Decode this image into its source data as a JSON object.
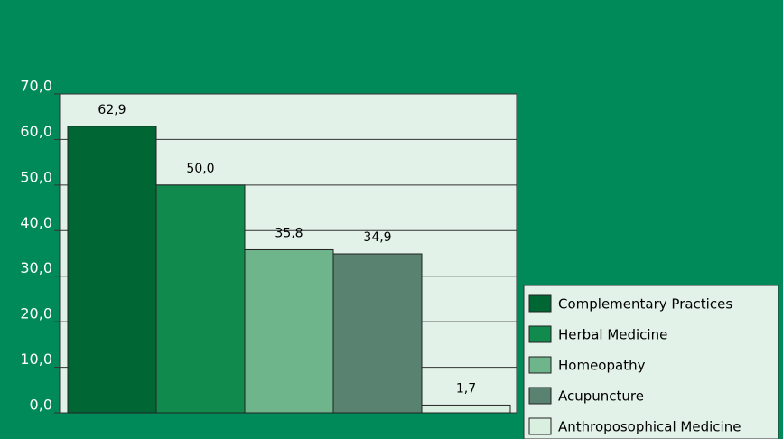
{
  "chart_data": {
    "type": "bar",
    "categories": [
      "Complementary Practices",
      "Herbal Medicine",
      "Homeopathy",
      "Acupuncture",
      "Anthroposophical Medicine"
    ],
    "values": [
      62.9,
      50.0,
      35.8,
      34.9,
      1.7
    ],
    "value_labels": [
      "62,9",
      "50,0",
      "35,8",
      "34,9",
      "1,7"
    ],
    "colors": [
      "#006633",
      "#118a4e",
      "#6fb58b",
      "#5a8270",
      "#d9efe0"
    ],
    "ylim": [
      0,
      70
    ],
    "yticks": [
      {
        "value": 0,
        "label": "0,0"
      },
      {
        "value": 10,
        "label": "10,0"
      },
      {
        "value": 20,
        "label": "20,0"
      },
      {
        "value": 30,
        "label": "30,0"
      },
      {
        "value": 40,
        "label": "40,0"
      },
      {
        "value": 50,
        "label": "50,0"
      },
      {
        "value": 60,
        "label": "60,0"
      },
      {
        "value": 70,
        "label": "70,0"
      }
    ],
    "grid": true
  }
}
